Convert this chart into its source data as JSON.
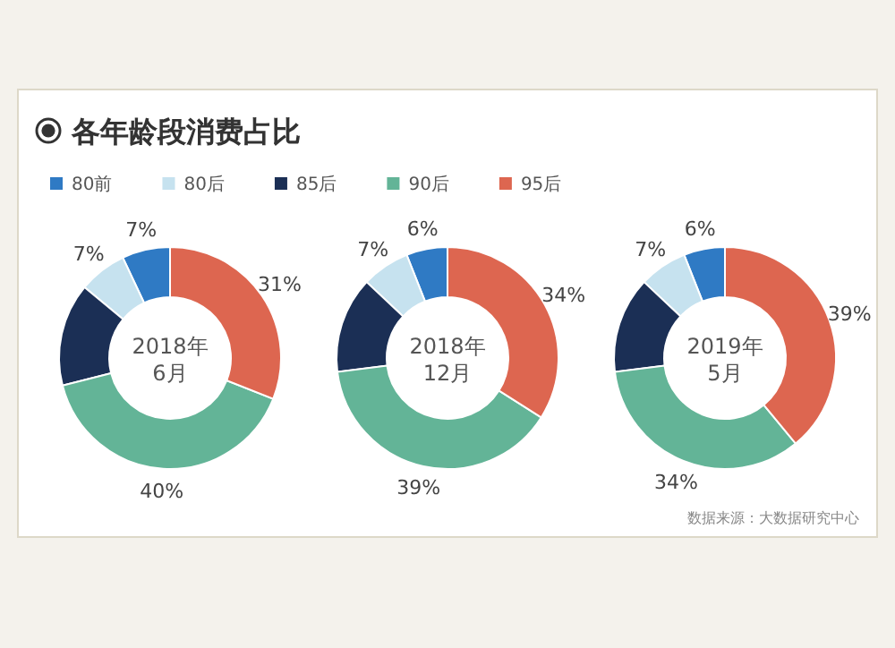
{
  "chart_data": [
    {
      "type": "donut",
      "title": "2018年\n6月",
      "annotations": [
        "各年龄段消费占比"
      ],
      "legend": "top right",
      "categories": [
        "80前",
        "80后",
        "85后",
        "90后",
        "95后"
      ],
      "values": [
        7,
        7,
        15,
        40,
        31
      ],
      "value_labels": [
        "7%",
        "7%",
        null,
        "40%",
        "31%"
      ],
      "colors": [
        "#2f7ac4",
        "#c6e2ef",
        "#1b2f55",
        "#63b497",
        "#dd6650"
      ]
    },
    {
      "type": "donut",
      "title": "2018年\n12月",
      "categories": [
        null,
        null,
        null,
        null,
        null
      ],
      "values": [
        6,
        7,
        14,
        39,
        34
      ],
      "value_labels": [
        "6%",
        "7%",
        null,
        "39%",
        "34%"
      ],
      "colors": [
        "#2f7ac4",
        "#c6e2ef",
        "#1b2f55",
        "#63b497",
        "#dd6650"
      ]
    },
    {
      "type": "donut",
      "title": "2019年\n5月",
      "annotations": [
        "数据来源：大数据研究中心"
      ],
      "categories": [
        null,
        null,
        null,
        null,
        null
      ],
      "values": [
        6,
        7,
        14,
        34,
        39
      ],
      "value_labels": [
        "6%",
        "7%",
        null,
        "34%",
        "39%"
      ],
      "colors": [
        "#2f7ac4",
        "#c6e2ef",
        "#1b2f55",
        "#63b497",
        "#dd6650"
      ]
    }
  ]
}
